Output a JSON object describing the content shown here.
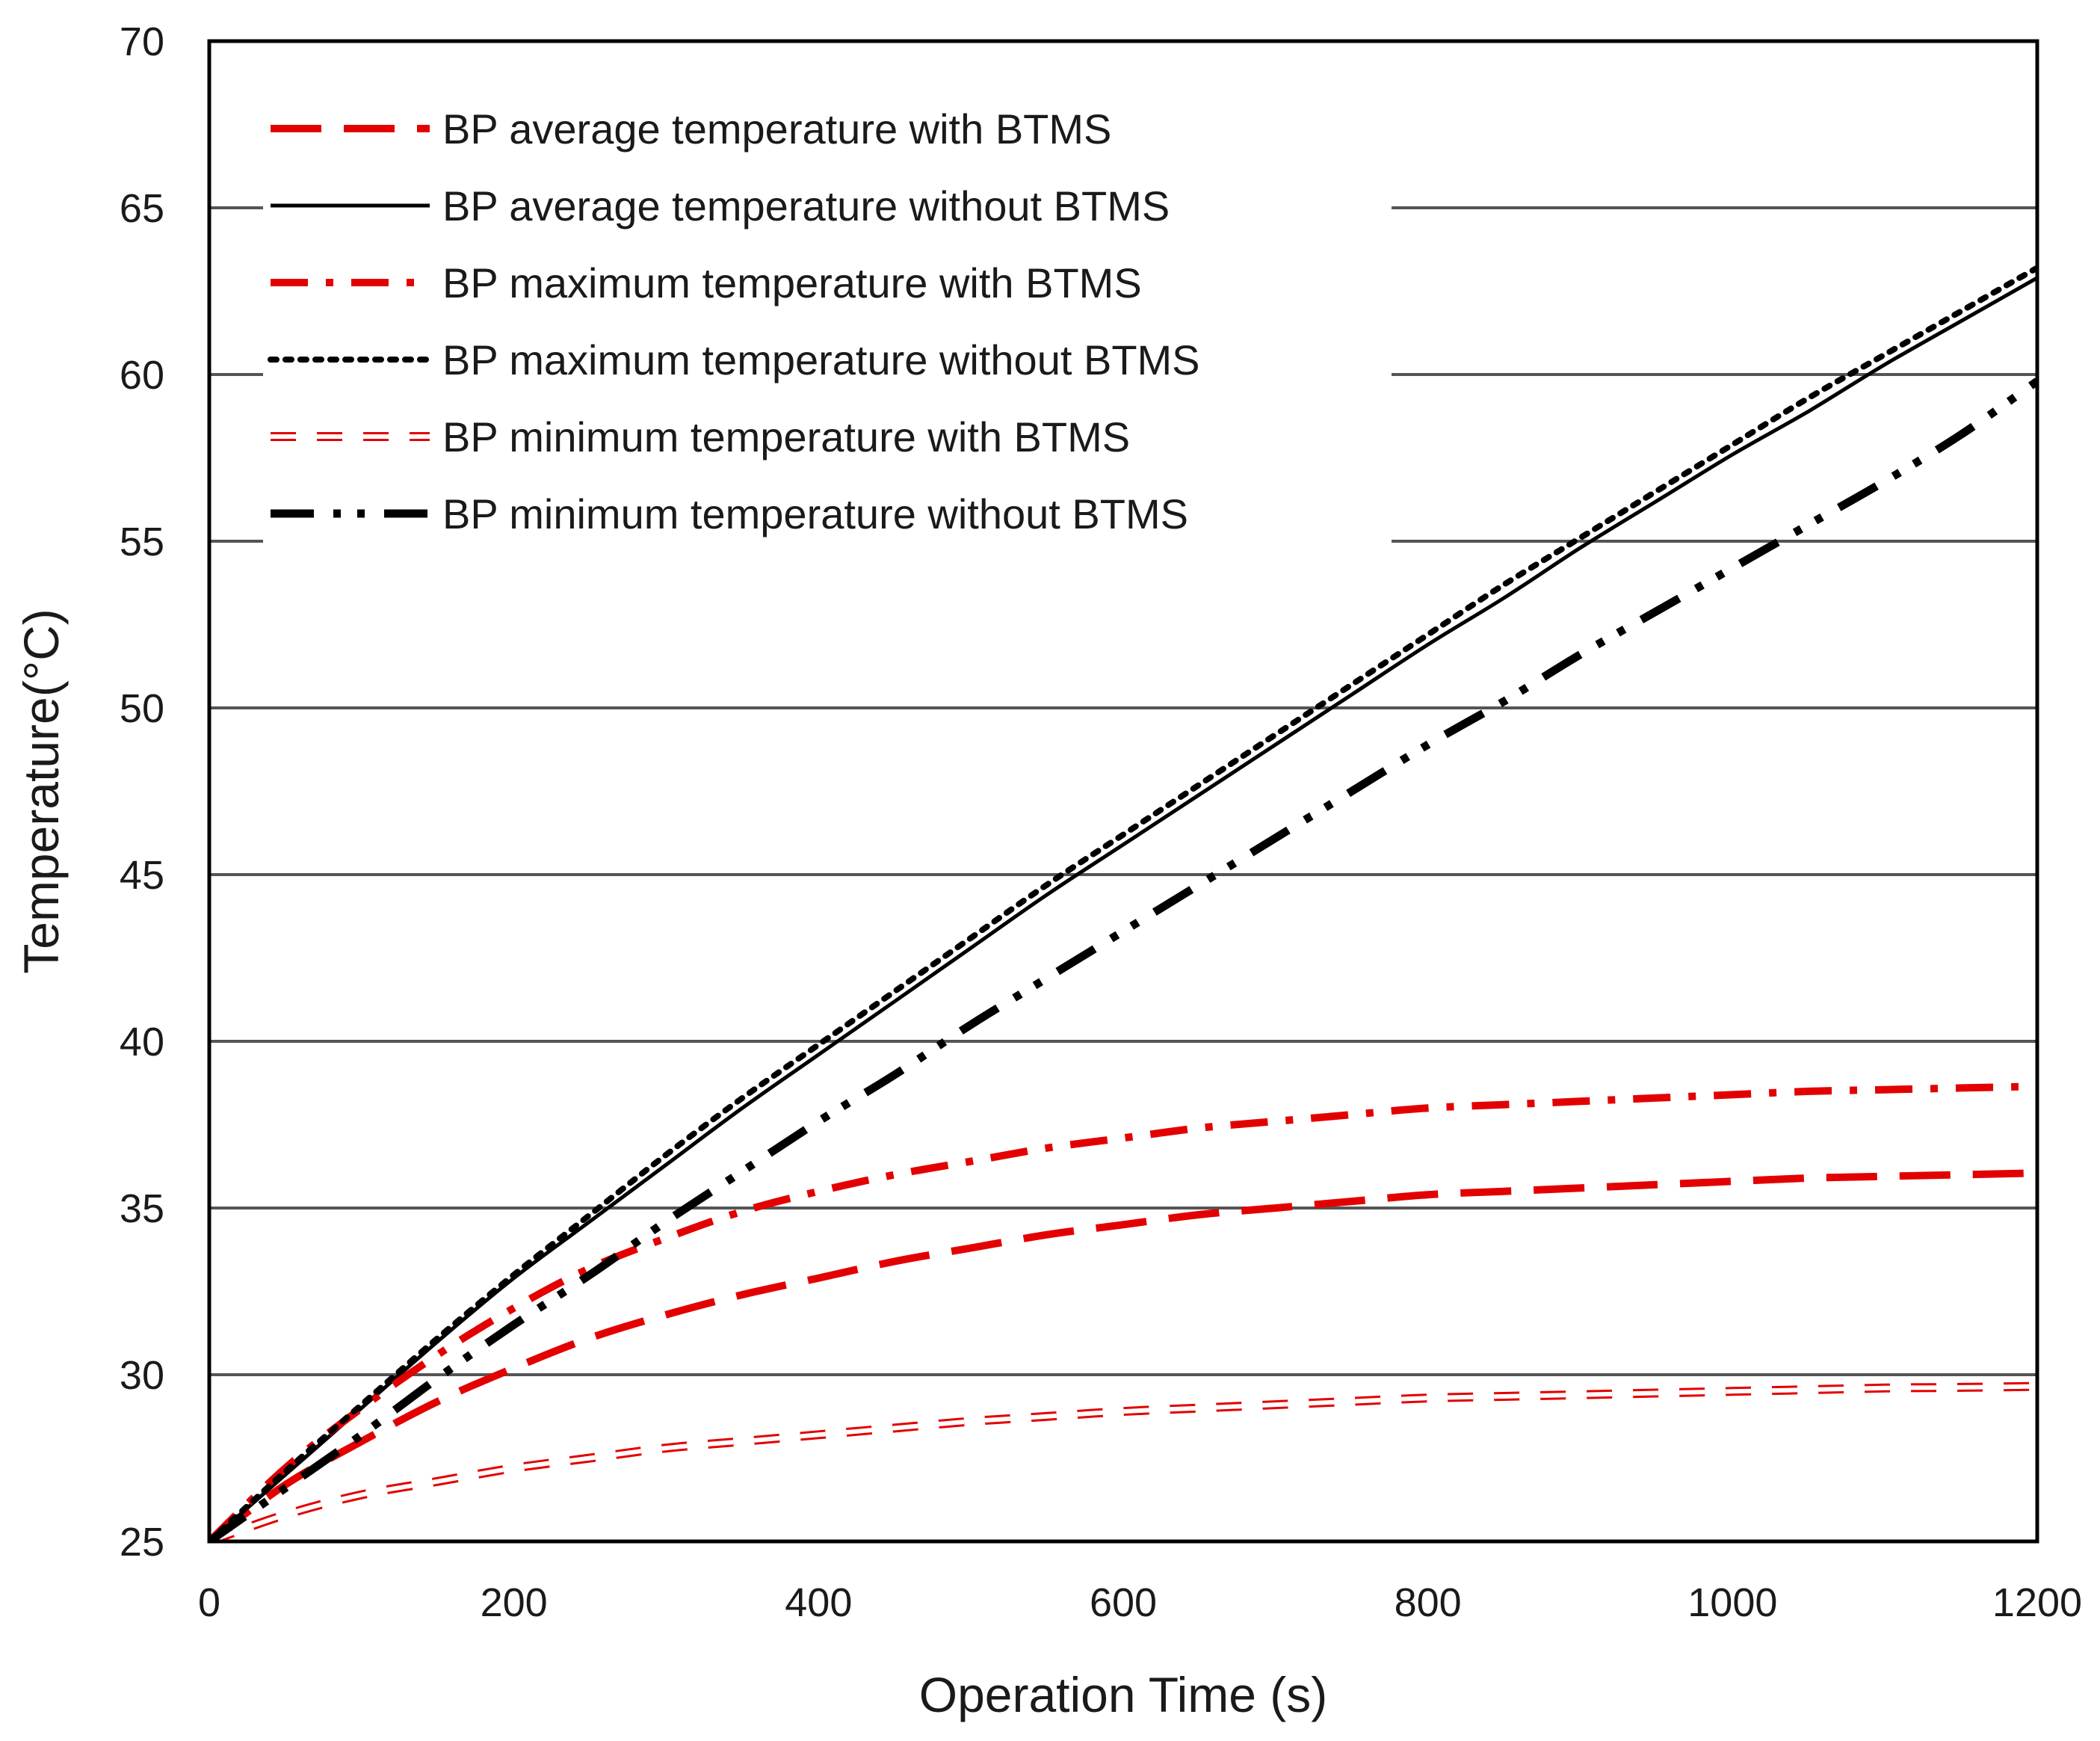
{
  "chart_data": {
    "type": "line",
    "title": "",
    "xlabel": "Operation Time (s)",
    "ylabel": "Temperature(°C)",
    "xlim": [
      0,
      1200
    ],
    "ylim": [
      25,
      70
    ],
    "xticks": [
      0,
      200,
      400,
      600,
      800,
      1000,
      1200
    ],
    "yticks": [
      25,
      30,
      35,
      40,
      45,
      50,
      55,
      60,
      65,
      70
    ],
    "grid": "horizontal",
    "legend_position": "top-left",
    "x": [
      0,
      50,
      100,
      150,
      200,
      250,
      300,
      350,
      400,
      450,
      500,
      550,
      600,
      650,
      700,
      750,
      800,
      850,
      900,
      950,
      1000,
      1050,
      1100,
      1150,
      1200
    ],
    "series": [
      {
        "name": "BP average temperature with BTMS",
        "style": "long-dash",
        "color": "#e30000",
        "values": [
          25.0,
          26.7,
          28.0,
          29.2,
          30.2,
          31.1,
          31.8,
          32.4,
          32.9,
          33.4,
          33.8,
          34.2,
          34.5,
          34.8,
          35.0,
          35.2,
          35.4,
          35.5,
          35.6,
          35.7,
          35.8,
          35.9,
          35.95,
          36.0,
          36.05
        ]
      },
      {
        "name": "BP average temperature without BTMS",
        "style": "solid",
        "color": "#000000",
        "values": [
          25.0,
          27.0,
          29.0,
          31.0,
          32.9,
          34.6,
          36.3,
          38.0,
          39.6,
          41.2,
          42.8,
          44.4,
          45.9,
          47.4,
          48.9,
          50.4,
          51.9,
          53.3,
          54.8,
          56.2,
          57.6,
          58.9,
          60.3,
          61.6,
          62.9
        ]
      },
      {
        "name": "BP maximum temperature with BTMS",
        "style": "dash-dot",
        "color": "#e30000",
        "values": [
          25.0,
          27.2,
          29.0,
          30.6,
          32.0,
          33.2,
          34.1,
          34.9,
          35.5,
          36.0,
          36.4,
          36.8,
          37.1,
          37.4,
          37.6,
          37.8,
          38.0,
          38.1,
          38.2,
          38.3,
          38.4,
          38.5,
          38.55,
          38.6,
          38.65
        ]
      },
      {
        "name": "BP maximum temperature without BTMS",
        "style": "dotted",
        "color": "#000000",
        "values": [
          25.0,
          27.1,
          29.1,
          31.1,
          33.0,
          34.8,
          36.6,
          38.3,
          39.9,
          41.5,
          43.1,
          44.7,
          46.2,
          47.7,
          49.2,
          50.7,
          52.2,
          53.7,
          55.1,
          56.5,
          57.9,
          59.3,
          60.6,
          61.9,
          63.2
        ]
      },
      {
        "name": "BP minimum temperature with BTMS",
        "style": "hollow-dash",
        "color": "#e30000",
        "values": [
          25.0,
          25.8,
          26.4,
          26.8,
          27.2,
          27.5,
          27.8,
          28.0,
          28.2,
          28.4,
          28.6,
          28.75,
          28.9,
          29.0,
          29.1,
          29.2,
          29.3,
          29.35,
          29.4,
          29.45,
          29.5,
          29.55,
          29.6,
          29.62,
          29.65
        ]
      },
      {
        "name": "BP minimum temperature without BTMS",
        "style": "dash-dot-dot",
        "color": "#000000",
        "values": [
          25.0,
          26.6,
          28.2,
          29.9,
          31.5,
          33.0,
          34.6,
          36.1,
          37.6,
          39.0,
          40.5,
          41.9,
          43.3,
          44.7,
          46.1,
          47.5,
          48.9,
          50.2,
          51.6,
          52.9,
          54.2,
          55.5,
          56.8,
          58.2,
          59.8
        ]
      }
    ]
  }
}
